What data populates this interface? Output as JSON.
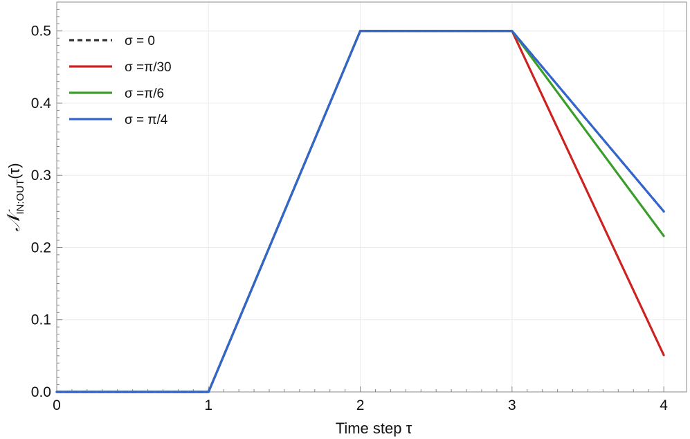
{
  "chart_data": {
    "type": "line",
    "title": "",
    "xlabel": "Time step τ",
    "ylabel_main": "𝒩",
    "ylabel_sub": "IN:OUT",
    "ylabel_tail": "(τ)",
    "xlim": [
      0,
      4.15
    ],
    "ylim": [
      0,
      0.54
    ],
    "x_ticks": [
      0,
      1,
      2,
      3,
      4
    ],
    "x_tick_labels": [
      "0",
      "1",
      "2",
      "3",
      "4"
    ],
    "y_ticks": [
      0,
      0.1,
      0.2,
      0.3,
      0.4,
      0.5
    ],
    "y_tick_labels": [
      "0.0",
      "0.1",
      "0.2",
      "0.3",
      "0.4",
      "0.5"
    ],
    "grid": true,
    "legend_position": "top-left",
    "x": [
      0,
      1,
      2,
      3,
      4
    ],
    "series": [
      {
        "name": "σ = 0",
        "color": "#333333",
        "dashed": true,
        "values": [
          0,
          0,
          0.5,
          0.5,
          0.25
        ]
      },
      {
        "name": "σ =π/30",
        "color": "#cc2222",
        "dashed": false,
        "values": [
          0,
          0,
          0.5,
          0.5,
          0.051
        ]
      },
      {
        "name": "σ =π/6",
        "color": "#3a9e2a",
        "dashed": false,
        "values": [
          0,
          0,
          0.5,
          0.5,
          0.216
        ]
      },
      {
        "name": "σ = π/4",
        "color": "#3366cc",
        "dashed": false,
        "values": [
          0,
          0,
          0.5,
          0.5,
          0.25
        ]
      }
    ]
  }
}
